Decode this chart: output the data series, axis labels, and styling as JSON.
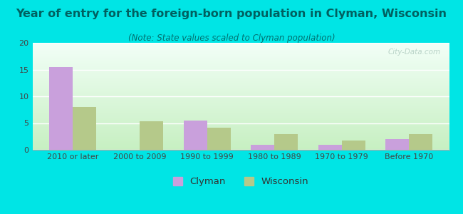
{
  "title": "Year of entry for the foreign-born population in Clyman, Wisconsin",
  "subtitle": "(Note: State values scaled to Clyman population)",
  "categories": [
    "2010 or later",
    "2000 to 2009",
    "1990 to 1999",
    "1980 to 1989",
    "1970 to 1979",
    "Before 1970"
  ],
  "clyman_values": [
    15.5,
    0,
    5.5,
    1.0,
    1.0,
    2.0
  ],
  "wisconsin_values": [
    8.0,
    5.3,
    4.2,
    3.0,
    1.7,
    3.0
  ],
  "clyman_color": "#c9a0dc",
  "wisconsin_color": "#b5c98a",
  "background_outer": "#00e5e5",
  "ylim": [
    0,
    20
  ],
  "yticks": [
    0,
    5,
    10,
    15,
    20
  ],
  "bar_width": 0.35,
  "title_fontsize": 11.5,
  "subtitle_fontsize": 8.5,
  "tick_fontsize": 8,
  "legend_fontsize": 9.5,
  "title_color": "#006060",
  "subtitle_color": "#007070",
  "watermark": "City-Data.com"
}
